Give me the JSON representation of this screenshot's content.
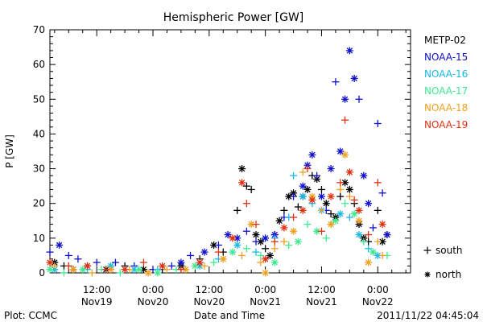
{
  "chart_data": {
    "type": "scatter",
    "title": "Hemispheric Power [GW]",
    "ylabel": "P [GW]",
    "xlabel": "Date and Time",
    "ylim": [
      0,
      70
    ],
    "xlim_hours": [
      2,
      79
    ],
    "y_ticks": [
      0,
      10,
      20,
      30,
      40,
      50,
      60,
      70
    ],
    "x_ticks": [
      {
        "hour": 12,
        "time": "12:00",
        "date": "Nov19"
      },
      {
        "hour": 24,
        "time": "0:00",
        "date": "Nov20"
      },
      {
        "hour": 36,
        "time": "12:00",
        "date": "Nov20"
      },
      {
        "hour": 48,
        "time": "0:00",
        "date": "Nov21"
      },
      {
        "hour": 60,
        "time": "12:00",
        "date": "Nov21"
      },
      {
        "hour": 72,
        "time": "0:00",
        "date": "Nov22"
      }
    ],
    "marker_legend": [
      {
        "symbol": "+",
        "label": "south"
      },
      {
        "symbol": "*",
        "label": "north"
      }
    ],
    "series": [
      {
        "name": "METP-02",
        "color": "#000000",
        "points": [
          [
            3,
            3,
            "n"
          ],
          [
            5,
            2,
            "s"
          ],
          [
            7,
            1,
            "n"
          ],
          [
            10,
            2,
            "s"
          ],
          [
            14,
            1,
            "n"
          ],
          [
            18,
            2,
            "s"
          ],
          [
            22,
            1,
            "n"
          ],
          [
            26,
            1,
            "s"
          ],
          [
            30,
            2,
            "n"
          ],
          [
            34,
            4,
            "s"
          ],
          [
            37,
            8,
            "n"
          ],
          [
            39,
            6,
            "s"
          ],
          [
            42,
            18,
            "s"
          ],
          [
            43,
            30,
            "n"
          ],
          [
            44,
            25,
            "s"
          ],
          [
            45,
            24,
            "s"
          ],
          [
            46,
            11,
            "n"
          ],
          [
            47,
            9,
            "n"
          ],
          [
            48,
            7,
            "s"
          ],
          [
            49,
            5,
            "n"
          ],
          [
            50,
            11,
            "s"
          ],
          [
            51,
            15,
            "n"
          ],
          [
            52,
            18,
            "s"
          ],
          [
            53,
            22,
            "n"
          ],
          [
            54,
            23,
            "n"
          ],
          [
            55,
            19,
            "s"
          ],
          [
            56,
            22,
            "n"
          ],
          [
            57,
            24,
            "n"
          ],
          [
            58,
            28,
            "s"
          ],
          [
            59,
            27,
            "n"
          ],
          [
            60,
            24,
            "s"
          ],
          [
            61,
            20,
            "n"
          ],
          [
            62,
            17,
            "s"
          ],
          [
            63,
            16,
            "n"
          ],
          [
            64,
            22,
            "s"
          ],
          [
            65,
            26,
            "n"
          ],
          [
            66,
            24,
            "n"
          ],
          [
            67,
            20,
            "s"
          ],
          [
            68,
            14,
            "n"
          ],
          [
            69,
            10,
            "n"
          ],
          [
            70,
            9,
            "s"
          ],
          [
            72,
            18,
            "s"
          ],
          [
            73,
            9,
            "n"
          ],
          [
            74,
            11,
            "n"
          ]
        ]
      },
      {
        "name": "NOAA-15",
        "color": "#1010d0",
        "points": [
          [
            2,
            6,
            "s"
          ],
          [
            4,
            8,
            "n"
          ],
          [
            6,
            5,
            "s"
          ],
          [
            8,
            4,
            "s"
          ],
          [
            12,
            3,
            "s"
          ],
          [
            16,
            3,
            "s"
          ],
          [
            20,
            2,
            "s"
          ],
          [
            24,
            1,
            "s"
          ],
          [
            28,
            2,
            "s"
          ],
          [
            30,
            3,
            "n"
          ],
          [
            32,
            5,
            "s"
          ],
          [
            35,
            6,
            "n"
          ],
          [
            38,
            8,
            "s"
          ],
          [
            40,
            11,
            "n"
          ],
          [
            42,
            10,
            "n"
          ],
          [
            44,
            12,
            "s"
          ],
          [
            46,
            9,
            "s"
          ],
          [
            48,
            10,
            "n"
          ],
          [
            50,
            11,
            "n"
          ],
          [
            52,
            16,
            "s"
          ],
          [
            54,
            22,
            "s"
          ],
          [
            56,
            25,
            "n"
          ],
          [
            57,
            31,
            "n"
          ],
          [
            58,
            34,
            "n"
          ],
          [
            59,
            28,
            "s"
          ],
          [
            60,
            22,
            "n"
          ],
          [
            61,
            18,
            "s"
          ],
          [
            62,
            30,
            "n"
          ],
          [
            63,
            55,
            "s"
          ],
          [
            64,
            35,
            "n"
          ],
          [
            65,
            50,
            "n"
          ],
          [
            66,
            64,
            "n"
          ],
          [
            67,
            56,
            "n"
          ],
          [
            68,
            50,
            "s"
          ],
          [
            69,
            28,
            "n"
          ],
          [
            70,
            20,
            "n"
          ],
          [
            71,
            13,
            "s"
          ],
          [
            72,
            43,
            "s"
          ],
          [
            73,
            23,
            "s"
          ],
          [
            74,
            11,
            "n"
          ]
        ]
      },
      {
        "name": "NOAA-16",
        "color": "#18b8e8",
        "points": [
          [
            3,
            1,
            "n"
          ],
          [
            6,
            2,
            "s"
          ],
          [
            10,
            1,
            "s"
          ],
          [
            15,
            2,
            "n"
          ],
          [
            20,
            1,
            "n"
          ],
          [
            25,
            1,
            "s"
          ],
          [
            30,
            1,
            "s"
          ],
          [
            34,
            2,
            "n"
          ],
          [
            38,
            4,
            "s"
          ],
          [
            42,
            8,
            "n"
          ],
          [
            46,
            6,
            "s"
          ],
          [
            50,
            10,
            "s"
          ],
          [
            53,
            16,
            "s"
          ],
          [
            54,
            28,
            "s"
          ],
          [
            56,
            22,
            "n"
          ],
          [
            58,
            20,
            "s"
          ],
          [
            60,
            18,
            "n"
          ],
          [
            62,
            14,
            "s"
          ],
          [
            64,
            17,
            "n"
          ],
          [
            66,
            16,
            "s"
          ],
          [
            68,
            11,
            "n"
          ],
          [
            70,
            7,
            "s"
          ],
          [
            72,
            5,
            "n"
          ]
        ]
      },
      {
        "name": "NOAA-17",
        "color": "#40e890",
        "points": [
          [
            2,
            1,
            "n"
          ],
          [
            5,
            0,
            "s"
          ],
          [
            9,
            1,
            "n"
          ],
          [
            13,
            1,
            "s"
          ],
          [
            17,
            0,
            "s"
          ],
          [
            21,
            1,
            "n"
          ],
          [
            25,
            0,
            "n"
          ],
          [
            29,
            1,
            "s"
          ],
          [
            33,
            2,
            "n"
          ],
          [
            37,
            3,
            "s"
          ],
          [
            41,
            6,
            "n"
          ],
          [
            44,
            7,
            "s"
          ],
          [
            47,
            5,
            "s"
          ],
          [
            50,
            3,
            "n"
          ],
          [
            53,
            8,
            "s"
          ],
          [
            55,
            9,
            "n"
          ],
          [
            57,
            14,
            "s"
          ],
          [
            59,
            12,
            "n"
          ],
          [
            61,
            10,
            "s"
          ],
          [
            63,
            15,
            "n"
          ],
          [
            65,
            20,
            "s"
          ],
          [
            67,
            17,
            "n"
          ],
          [
            69,
            9,
            "s"
          ],
          [
            71,
            6,
            "n"
          ],
          [
            74,
            5,
            "s"
          ]
        ]
      },
      {
        "name": "NOAA-18",
        "color": "#f0a020",
        "points": [
          [
            3,
            2,
            "s"
          ],
          [
            7,
            1,
            "n"
          ],
          [
            11,
            0,
            "s"
          ],
          [
            15,
            1,
            "n"
          ],
          [
            19,
            1,
            "s"
          ],
          [
            23,
            0,
            "n"
          ],
          [
            27,
            1,
            "s"
          ],
          [
            31,
            1,
            "n"
          ],
          [
            35,
            2,
            "s"
          ],
          [
            39,
            4,
            "n"
          ],
          [
            43,
            5,
            "s"
          ],
          [
            45,
            14,
            "n"
          ],
          [
            47,
            3,
            "s"
          ],
          [
            48,
            0,
            "n"
          ],
          [
            50,
            7,
            "s"
          ],
          [
            52,
            9,
            "s"
          ],
          [
            54,
            12,
            "n"
          ],
          [
            56,
            29,
            "s"
          ],
          [
            58,
            22,
            "n"
          ],
          [
            60,
            18,
            "s"
          ],
          [
            62,
            14,
            "n"
          ],
          [
            64,
            24,
            "s"
          ],
          [
            65,
            34,
            "n"
          ],
          [
            66,
            22,
            "s"
          ],
          [
            68,
            15,
            "n"
          ],
          [
            70,
            3,
            "n"
          ],
          [
            72,
            9,
            "s"
          ],
          [
            73,
            5,
            "s"
          ]
        ]
      },
      {
        "name": "NOAA-19",
        "color": "#e03010",
        "points": [
          [
            2,
            3,
            "n"
          ],
          [
            6,
            2,
            "s"
          ],
          [
            10,
            2,
            "n"
          ],
          [
            14,
            1,
            "s"
          ],
          [
            18,
            1,
            "n"
          ],
          [
            22,
            3,
            "s"
          ],
          [
            26,
            2,
            "n"
          ],
          [
            30,
            1,
            "s"
          ],
          [
            34,
            3,
            "n"
          ],
          [
            38,
            6,
            "s"
          ],
          [
            41,
            10,
            "n"
          ],
          [
            43,
            26,
            "n"
          ],
          [
            44,
            20,
            "s"
          ],
          [
            46,
            14,
            "s"
          ],
          [
            48,
            4,
            "n"
          ],
          [
            50,
            9,
            "s"
          ],
          [
            52,
            13,
            "n"
          ],
          [
            54,
            16,
            "s"
          ],
          [
            56,
            18,
            "n"
          ],
          [
            57,
            30,
            "s"
          ],
          [
            58,
            21,
            "n"
          ],
          [
            60,
            12,
            "s"
          ],
          [
            62,
            22,
            "n"
          ],
          [
            64,
            26,
            "s"
          ],
          [
            65,
            44,
            "s"
          ],
          [
            66,
            29,
            "n"
          ],
          [
            67,
            21,
            "s"
          ],
          [
            68,
            18,
            "n"
          ],
          [
            70,
            11,
            "s"
          ],
          [
            72,
            26,
            "s"
          ],
          [
            73,
            14,
            "n"
          ]
        ]
      }
    ]
  },
  "footer": {
    "left": "Plot: CCMC",
    "right": "2011/11/22 04:45:04"
  }
}
